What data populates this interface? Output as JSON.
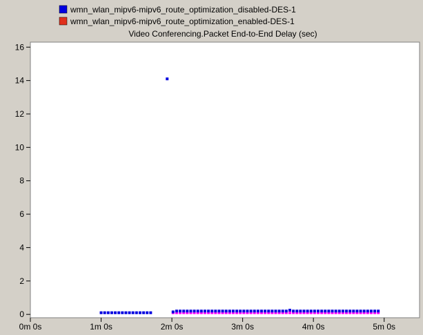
{
  "colors": {
    "background": "#d4d0c8",
    "plot_background": "#ffffff",
    "series_disabled": "#0000e0",
    "series_enabled": "#ff00ff",
    "legend_enabled_swatch": "#e0301c"
  },
  "chart_data": {
    "type": "scatter",
    "title": "Video Conferencing.Packet End-to-End Delay (sec)",
    "xlabel": "",
    "ylabel": "",
    "xlim": [
      0,
      330
    ],
    "ylim": [
      -0.2,
      16.3
    ],
    "x_ticks": [
      {
        "value": 0,
        "label": "0m 0s"
      },
      {
        "value": 60,
        "label": "1m 0s"
      },
      {
        "value": 120,
        "label": "2m 0s"
      },
      {
        "value": 180,
        "label": "3m 0s"
      },
      {
        "value": 240,
        "label": "4m 0s"
      },
      {
        "value": 300,
        "label": "5m 0s"
      }
    ],
    "y_ticks": [
      0,
      2,
      4,
      6,
      8,
      10,
      12,
      14,
      16
    ],
    "grid": false,
    "legend_position": "top",
    "series": [
      {
        "name": "wmn_wlan_mipv6-mipv6_route_optimization_disabled-DES-1",
        "color": "#0000e0",
        "points": [
          [
            60,
            0.1
          ],
          [
            63,
            0.1
          ],
          [
            66,
            0.1
          ],
          [
            69,
            0.1
          ],
          [
            72,
            0.1
          ],
          [
            75,
            0.1
          ],
          [
            78,
            0.1
          ],
          [
            81,
            0.1
          ],
          [
            84,
            0.1
          ],
          [
            87,
            0.1
          ],
          [
            90,
            0.1
          ],
          [
            93,
            0.1
          ],
          [
            96,
            0.1
          ],
          [
            99,
            0.1
          ],
          [
            102,
            0.1
          ],
          [
            116,
            14.1
          ],
          [
            121,
            0.15
          ],
          [
            124,
            0.2
          ],
          [
            127,
            0.2
          ],
          [
            130,
            0.2
          ],
          [
            133,
            0.2
          ],
          [
            136,
            0.2
          ],
          [
            139,
            0.2
          ],
          [
            142,
            0.2
          ],
          [
            145,
            0.2
          ],
          [
            148,
            0.2
          ],
          [
            151,
            0.2
          ],
          [
            154,
            0.2
          ],
          [
            157,
            0.2
          ],
          [
            160,
            0.2
          ],
          [
            163,
            0.2
          ],
          [
            166,
            0.2
          ],
          [
            169,
            0.2
          ],
          [
            172,
            0.2
          ],
          [
            175,
            0.2
          ],
          [
            178,
            0.2
          ],
          [
            181,
            0.2
          ],
          [
            184,
            0.2
          ],
          [
            187,
            0.2
          ],
          [
            190,
            0.2
          ],
          [
            193,
            0.2
          ],
          [
            196,
            0.2
          ],
          [
            199,
            0.2
          ],
          [
            202,
            0.2
          ],
          [
            205,
            0.2
          ],
          [
            208,
            0.2
          ],
          [
            211,
            0.2
          ],
          [
            214,
            0.2
          ],
          [
            217,
            0.2
          ],
          [
            220,
            0.25
          ],
          [
            223,
            0.2
          ],
          [
            226,
            0.2
          ],
          [
            229,
            0.2
          ],
          [
            232,
            0.2
          ],
          [
            235,
            0.2
          ],
          [
            238,
            0.2
          ],
          [
            241,
            0.2
          ],
          [
            244,
            0.2
          ],
          [
            247,
            0.2
          ],
          [
            250,
            0.2
          ],
          [
            253,
            0.2
          ],
          [
            256,
            0.2
          ],
          [
            259,
            0.2
          ],
          [
            262,
            0.2
          ],
          [
            265,
            0.2
          ],
          [
            268,
            0.2
          ],
          [
            271,
            0.2
          ],
          [
            274,
            0.2
          ],
          [
            277,
            0.2
          ],
          [
            280,
            0.2
          ],
          [
            283,
            0.2
          ],
          [
            286,
            0.2
          ],
          [
            289,
            0.2
          ],
          [
            292,
            0.2
          ],
          [
            295,
            0.2
          ]
        ]
      },
      {
        "name": "wmn_wlan_mipv6-mipv6_route_optimization_enabled-DES-1",
        "color": "#ff00ff",
        "points": [
          [
            121,
            0.1
          ],
          [
            124,
            0.1
          ],
          [
            127,
            0.1
          ],
          [
            130,
            0.1
          ],
          [
            133,
            0.1
          ],
          [
            136,
            0.1
          ],
          [
            139,
            0.1
          ],
          [
            142,
            0.1
          ],
          [
            145,
            0.1
          ],
          [
            148,
            0.1
          ],
          [
            151,
            0.1
          ],
          [
            154,
            0.1
          ],
          [
            157,
            0.1
          ],
          [
            160,
            0.1
          ],
          [
            163,
            0.1
          ],
          [
            166,
            0.1
          ],
          [
            169,
            0.1
          ],
          [
            172,
            0.1
          ],
          [
            175,
            0.1
          ],
          [
            178,
            0.1
          ],
          [
            181,
            0.1
          ],
          [
            184,
            0.1
          ],
          [
            187,
            0.1
          ],
          [
            190,
            0.1
          ],
          [
            193,
            0.1
          ],
          [
            196,
            0.1
          ],
          [
            199,
            0.1
          ],
          [
            202,
            0.1
          ],
          [
            205,
            0.1
          ],
          [
            208,
            0.1
          ],
          [
            211,
            0.1
          ],
          [
            214,
            0.1
          ],
          [
            217,
            0.1
          ],
          [
            220,
            0.1
          ],
          [
            223,
            0.1
          ],
          [
            226,
            0.1
          ],
          [
            229,
            0.1
          ],
          [
            232,
            0.1
          ],
          [
            235,
            0.1
          ],
          [
            238,
            0.1
          ],
          [
            241,
            0.1
          ],
          [
            244,
            0.1
          ],
          [
            247,
            0.1
          ],
          [
            250,
            0.1
          ],
          [
            253,
            0.1
          ],
          [
            256,
            0.1
          ],
          [
            259,
            0.1
          ],
          [
            262,
            0.1
          ],
          [
            265,
            0.1
          ],
          [
            268,
            0.1
          ],
          [
            271,
            0.1
          ],
          [
            274,
            0.1
          ],
          [
            277,
            0.1
          ],
          [
            280,
            0.1
          ],
          [
            283,
            0.1
          ],
          [
            286,
            0.1
          ],
          [
            289,
            0.1
          ],
          [
            292,
            0.1
          ],
          [
            295,
            0.1
          ]
        ]
      }
    ]
  }
}
